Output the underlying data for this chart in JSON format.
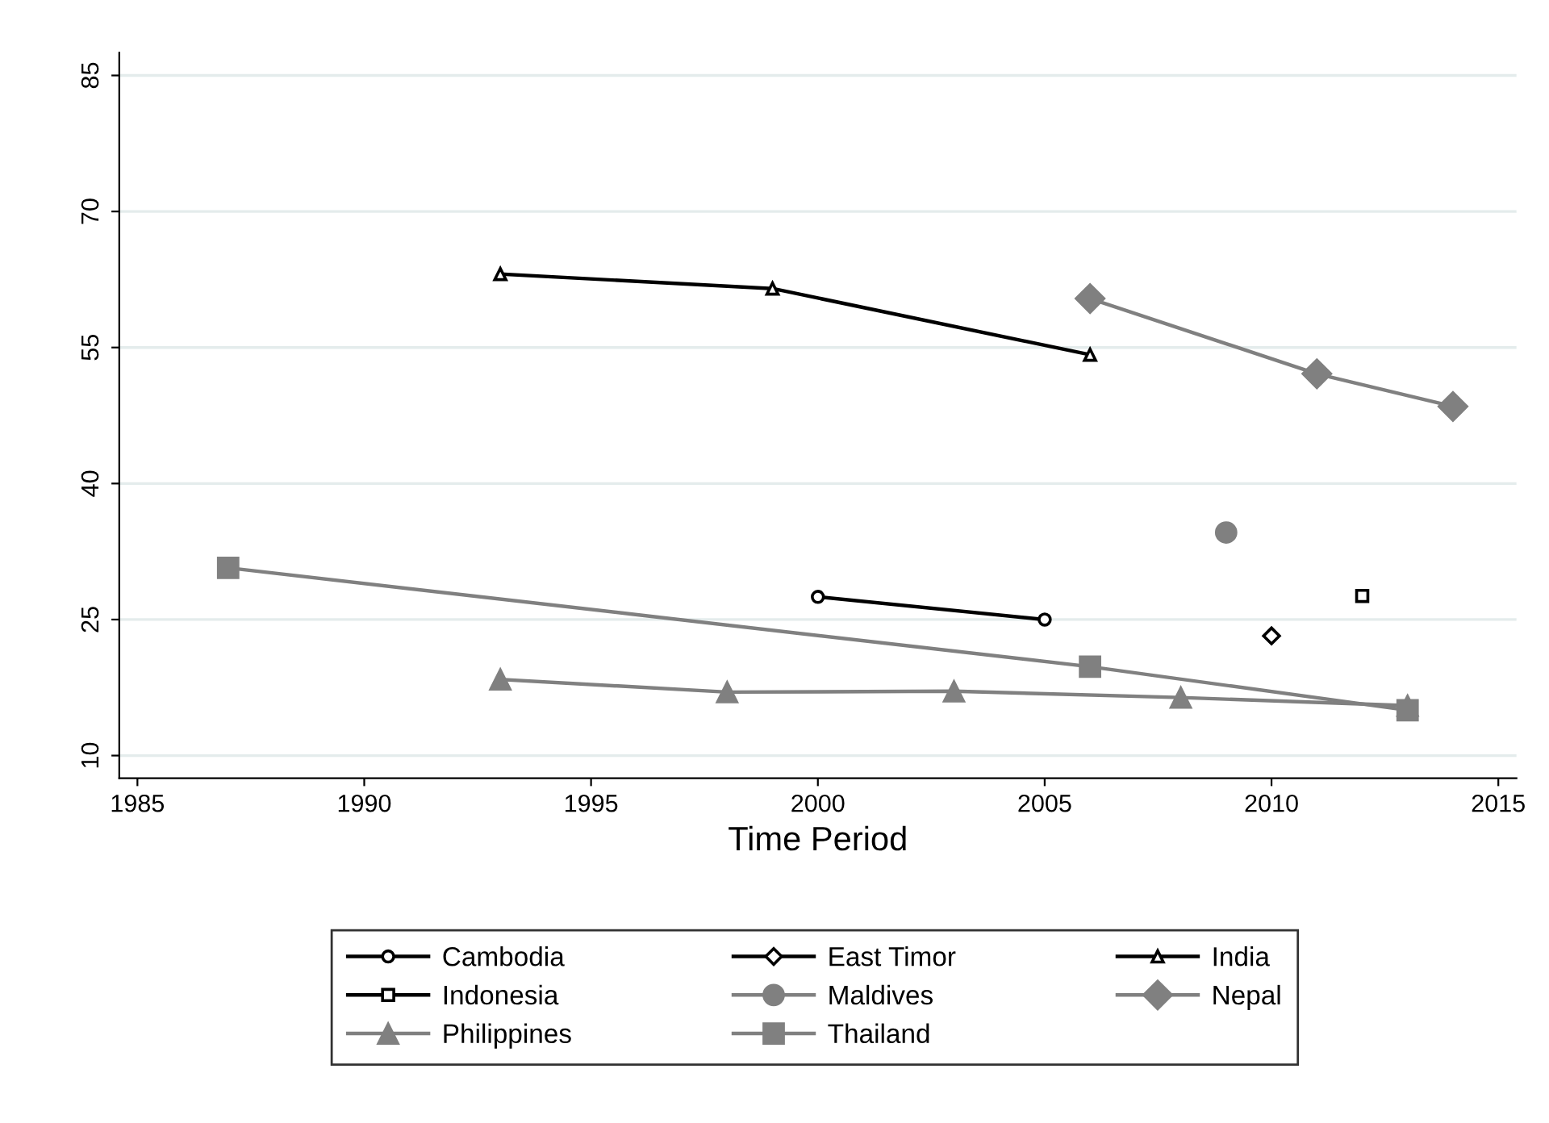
{
  "chart_data": {
    "type": "line",
    "xlabel": "Time Period",
    "xlim": [
      1984.6,
      2015.4
    ],
    "xticks": [
      1985,
      1990,
      1995,
      2000,
      2005,
      2010,
      2015
    ],
    "ylim": [
      7.5,
      87.5
    ],
    "yticks": [
      10,
      25,
      40,
      55,
      70,
      85
    ],
    "grid": "y",
    "legend": "bottom",
    "series": [
      {
        "name": "Cambodia",
        "color": "#000000",
        "marker": "circle",
        "x": [
          2000,
          2005
        ],
        "values": [
          27.5,
          25
        ]
      },
      {
        "name": "East Timor",
        "color": "#000000",
        "marker": "diamond",
        "x": [
          2010
        ],
        "values": [
          23.2
        ]
      },
      {
        "name": "India",
        "color": "#000000",
        "marker": "triangle",
        "x": [
          1993,
          1999,
          2006
        ],
        "values": [
          63.1,
          61.5,
          54.2
        ]
      },
      {
        "name": "Indonesia",
        "color": "#000000",
        "marker": "square",
        "x": [
          2012
        ],
        "values": [
          27.6
        ]
      },
      {
        "name": "Maldives",
        "color": "#808080",
        "marker": "circle",
        "x": [
          2009
        ],
        "values": [
          34.6
        ]
      },
      {
        "name": "Nepal",
        "color": "#808080",
        "marker": "diamond",
        "x": [
          2006,
          2011,
          2014
        ],
        "values": [
          60.4,
          52.1,
          48.5
        ]
      },
      {
        "name": "Philippines",
        "color": "#808080",
        "marker": "triangle",
        "x": [
          1993,
          1998,
          2003,
          2008,
          2013
        ],
        "values": [
          18.4,
          17,
          17.1,
          16.4,
          15.5
        ]
      },
      {
        "name": "Thailand",
        "color": "#808080",
        "marker": "square",
        "x": [
          1987,
          2006,
          2013
        ],
        "values": [
          30.7,
          19.8,
          15
        ]
      }
    ]
  }
}
